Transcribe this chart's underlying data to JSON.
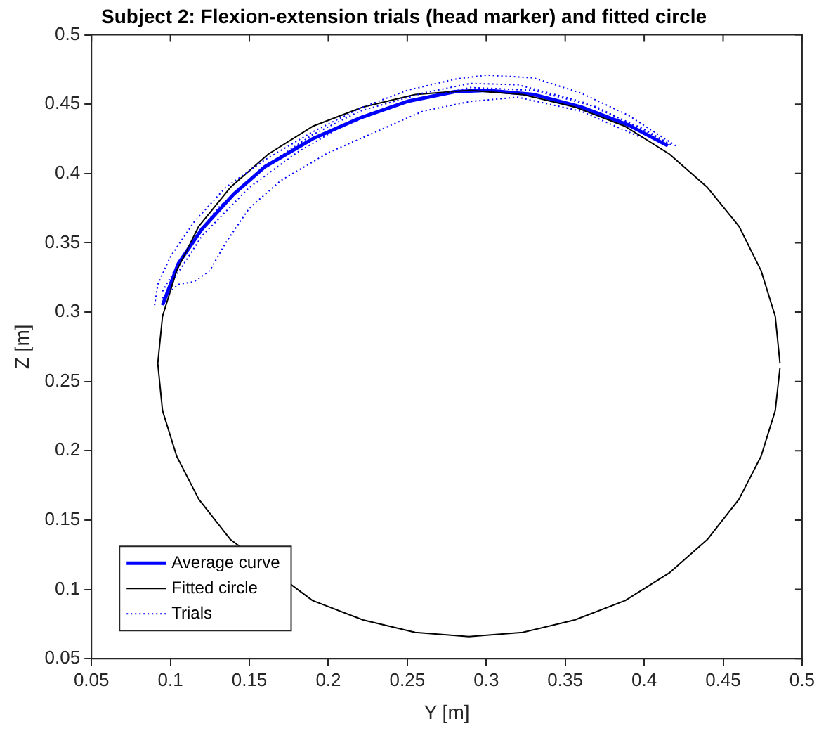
{
  "chart_data": {
    "type": "line",
    "title": "Subject 2: Flexion-extension trials (head marker) and fitted circle",
    "xlabel": "Y [m]",
    "ylabel": "Z [m]",
    "xlim": [
      0.05,
      0.5
    ],
    "xticks": [
      0.05,
      0.1,
      0.15,
      0.2,
      0.25,
      0.3,
      0.35,
      0.4,
      0.45,
      0.5
    ],
    "ylim": [
      0.05,
      0.5
    ],
    "yticks": [
      0.05,
      0.1,
      0.15,
      0.2,
      0.25,
      0.3,
      0.35,
      0.4,
      0.45,
      0.5
    ],
    "grid": false,
    "legend": "bottom left",
    "marker": "none",
    "series": [
      {
        "name": "Trials",
        "color": "#0000ff",
        "line_style": "dotted",
        "x": [
          0.09,
          0.092,
          0.1,
          0.115,
          0.135,
          0.16,
          0.19,
          0.22,
          0.25,
          0.28,
          0.3,
          0.33,
          0.36,
          0.39,
          0.42
        ],
        "values": [
          0.305,
          0.32,
          0.34,
          0.365,
          0.39,
          0.41,
          0.43,
          0.447,
          0.46,
          0.468,
          0.471,
          0.469,
          0.458,
          0.442,
          0.42
        ]
      },
      {
        "color": "#0000ff",
        "line_style": "dotted",
        "x": [
          0.095,
          0.105,
          0.115,
          0.125,
          0.135,
          0.15,
          0.17,
          0.2,
          0.23,
          0.26,
          0.29,
          0.32,
          0.36,
          0.4
        ],
        "values": [
          0.31,
          0.32,
          0.322,
          0.33,
          0.35,
          0.375,
          0.395,
          0.415,
          0.43,
          0.445,
          0.452,
          0.455,
          0.445,
          0.425
        ]
      },
      {
        "color": "#0000ff",
        "line_style": "dotted",
        "x": [
          0.095,
          0.11,
          0.13,
          0.16,
          0.19,
          0.22,
          0.26,
          0.29,
          0.32,
          0.36,
          0.4,
          0.418
        ],
        "values": [
          0.315,
          0.345,
          0.375,
          0.405,
          0.428,
          0.445,
          0.458,
          0.465,
          0.464,
          0.452,
          0.432,
          0.42
        ]
      },
      {
        "color": "#0000ff",
        "line_style": "dotted",
        "x": [
          0.1,
          0.12,
          0.15,
          0.18,
          0.21,
          0.25,
          0.29,
          0.33,
          0.37,
          0.41
        ],
        "values": [
          0.32,
          0.355,
          0.39,
          0.415,
          0.435,
          0.452,
          0.462,
          0.46,
          0.448,
          0.425
        ]
      },
      {
        "name": "Fitted circle",
        "color": "#000000",
        "line_style": "solid",
        "x": [
          0.486,
          0.483,
          0.474,
          0.46,
          0.44,
          0.416,
          0.388,
          0.356,
          0.323,
          0.289,
          0.255,
          0.222,
          0.19,
          0.162,
          0.138,
          0.118,
          0.104,
          0.095,
          0.092,
          0.095,
          0.104,
          0.118,
          0.138,
          0.162,
          0.19,
          0.222,
          0.255,
          0.289,
          0.323,
          0.356,
          0.388,
          0.416,
          0.44,
          0.46,
          0.474,
          0.483,
          0.486
        ],
        "values": [
          0.263,
          0.297,
          0.33,
          0.362,
          0.39,
          0.414,
          0.434,
          0.448,
          0.457,
          0.46,
          0.457,
          0.448,
          0.434,
          0.414,
          0.39,
          0.362,
          0.33,
          0.297,
          0.263,
          0.229,
          0.196,
          0.165,
          0.136,
          null,
          0.092,
          0.078,
          0.069,
          0.066,
          0.069,
          0.078,
          0.092,
          0.112,
          0.136,
          0.165,
          0.196,
          0.229,
          0.26
        ]
      },
      {
        "name": "Average curve",
        "color": "#0000ff",
        "line_style": "solid",
        "x": [
          0.095,
          0.105,
          0.12,
          0.14,
          0.16,
          0.19,
          0.22,
          0.25,
          0.28,
          0.3,
          0.33,
          0.36,
          0.39,
          0.415
        ],
        "values": [
          0.305,
          0.335,
          0.36,
          0.385,
          0.405,
          0.425,
          0.44,
          0.452,
          0.459,
          0.46,
          0.457,
          0.448,
          0.435,
          0.42
        ]
      }
    ]
  }
}
